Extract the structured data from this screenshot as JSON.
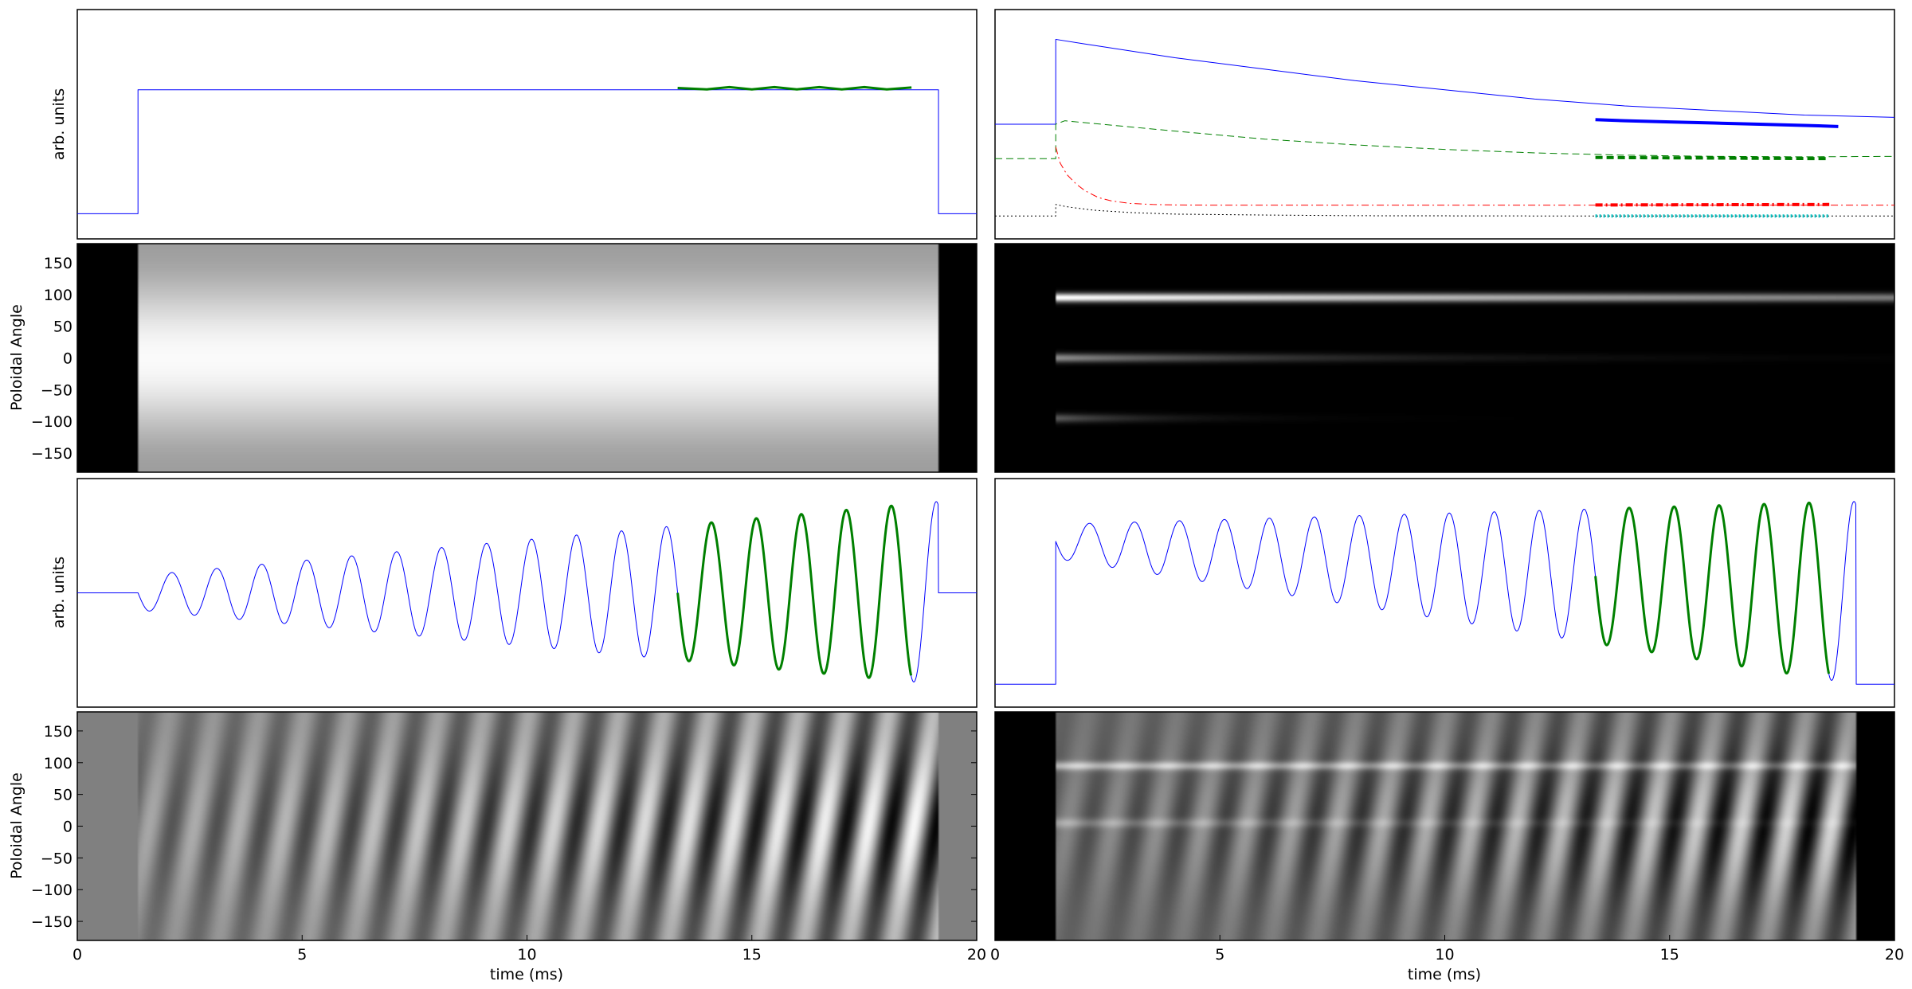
{
  "figure": {
    "colors": {
      "blue": "#0000ff",
      "green": "#008000",
      "red": "#ff0000",
      "black": "#000000",
      "cyan": "#00bfbf",
      "frame": "#000000"
    }
  },
  "chart_data": [
    {
      "id": "left-signal",
      "type": "line",
      "ylabel": "arb. units",
      "xlim": [
        0,
        20
      ],
      "ylim": [
        0,
        1
      ],
      "grid": false,
      "series": [
        {
          "color": "#0000ff",
          "style": "solid",
          "width": 1,
          "x": [
            0,
            1.35,
            1.35,
            19.15,
            19.15,
            20
          ],
          "y": [
            0.11,
            0.11,
            0.65,
            0.65,
            0.11,
            0.11
          ]
        },
        {
          "color": "#008000",
          "style": "solid",
          "width": 3,
          "x": [
            13.35,
            14.0,
            14.5,
            15.0,
            15.5,
            16.0,
            16.5,
            17.0,
            17.5,
            18.0,
            18.55
          ],
          "y": [
            0.658,
            0.652,
            0.662,
            0.652,
            0.662,
            0.652,
            0.662,
            0.652,
            0.662,
            0.652,
            0.66
          ]
        }
      ]
    },
    {
      "id": "right-signal",
      "type": "line",
      "xlim": [
        0,
        20
      ],
      "ylim": [
        0,
        1
      ],
      "grid": false,
      "series": [
        {
          "color": "#0000ff",
          "style": "solid",
          "width": 1,
          "x": [
            0,
            1.35,
            1.35,
            2,
            4,
            6,
            8,
            10,
            12,
            14,
            16,
            18,
            20
          ],
          "y": [
            0.5,
            0.5,
            0.87,
            0.85,
            0.79,
            0.74,
            0.69,
            0.65,
            0.61,
            0.58,
            0.56,
            0.54,
            0.53
          ]
        },
        {
          "color": "#0000ff",
          "style": "solid",
          "width": 4,
          "x": [
            13.35,
            14,
            15,
            16,
            17,
            18,
            18.75
          ],
          "y": [
            0.52,
            0.515,
            0.51,
            0.505,
            0.5,
            0.495,
            0.49
          ]
        },
        {
          "color": "#008000",
          "style": "dashed",
          "width": 1,
          "x": [
            0,
            1.35,
            1.35,
            1.55,
            4,
            6,
            8,
            10,
            12,
            14,
            16,
            18,
            20
          ],
          "y": [
            0.35,
            0.35,
            0.5,
            0.515,
            0.47,
            0.435,
            0.41,
            0.39,
            0.375,
            0.365,
            0.36,
            0.358,
            0.36
          ]
        },
        {
          "color": "#008000",
          "style": "dashed",
          "width": 4,
          "x": [
            13.35,
            18.55
          ],
          "y": [
            0.355,
            0.35
          ]
        },
        {
          "color": "#ff0000",
          "style": "dashdot",
          "width": 1,
          "x": [
            1.35,
            1.45,
            1.6,
            1.8,
            2.0,
            2.3,
            2.6,
            3.0,
            3.5,
            4.0,
            5.0,
            6.0,
            8.0,
            12.0,
            16.0,
            20.0
          ],
          "y": [
            0.4,
            0.33,
            0.28,
            0.24,
            0.21,
            0.18,
            0.165,
            0.155,
            0.15,
            0.148,
            0.147,
            0.147,
            0.147,
            0.147,
            0.147,
            0.147
          ]
        },
        {
          "color": "#ff0000",
          "style": "dashdot",
          "width": 4,
          "x": [
            13.35,
            18.55
          ],
          "y": [
            0.148,
            0.15
          ]
        },
        {
          "color": "#000000",
          "style": "dotted",
          "width": 1,
          "x": [
            0,
            1.35,
            1.35,
            1.6,
            2.2,
            3.0,
            4.0,
            6.0,
            8.0,
            12.0,
            16.0,
            20.0
          ],
          "y": [
            0.1,
            0.1,
            0.15,
            0.14,
            0.125,
            0.115,
            0.108,
            0.104,
            0.101,
            0.1,
            0.1,
            0.1
          ]
        },
        {
          "color": "#00bfbf",
          "style": "dotted",
          "width": 4,
          "x": [
            13.35,
            18.55
          ],
          "y": [
            0.1,
            0.1
          ]
        }
      ]
    },
    {
      "id": "left-map",
      "type": "heatmap",
      "ylabel": "Poloidal Angle",
      "xlim": [
        0,
        20
      ],
      "ylim": [
        -180,
        180
      ],
      "yticks": [
        "150",
        "100",
        "50",
        "0",
        "−50",
        "−100",
        "−150"
      ],
      "ytick_values": [
        150,
        100,
        50,
        0,
        -50,
        -100,
        -150
      ],
      "colormap": "gray",
      "t_on": 1.35,
      "t_off": 19.15,
      "pattern": "smooth vertical gradient, brightest near 0, darker toward ±180, black outside discharge"
    },
    {
      "id": "right-map",
      "type": "heatmap",
      "xlim": [
        0,
        20
      ],
      "ylim": [
        -180,
        180
      ],
      "colormap": "gray",
      "t_on": 1.35,
      "pattern": "three bright horizontal bands near 95, 0 and −95 degrees, decaying with time",
      "bands": [
        {
          "angle": 95,
          "peak": 1.0,
          "decay_ms": 25
        },
        {
          "angle": 0,
          "peak": 0.55,
          "decay_ms": 5
        },
        {
          "angle": -95,
          "peak": 0.35,
          "decay_ms": 2
        }
      ]
    },
    {
      "id": "left-wave",
      "type": "line",
      "ylabel": "arb. units",
      "xlim": [
        0,
        20
      ],
      "ylim": [
        -1,
        1
      ],
      "grid": false,
      "t_on": 1.35,
      "t_off": 19.15,
      "frequency_khz": 1.0,
      "amplitude_range": [
        0.15,
        0.8
      ],
      "series": [
        {
          "color": "#0000ff",
          "style": "solid",
          "width": 1,
          "segment": "full"
        },
        {
          "color": "#008000",
          "style": "solid",
          "width": 3,
          "segment": [
            13.35,
            18.55
          ]
        }
      ]
    },
    {
      "id": "right-wave",
      "type": "line",
      "xlim": [
        0,
        20
      ],
      "ylim": [
        -1,
        1
      ],
      "grid": false,
      "t_on": 1.35,
      "t_off": 19.15,
      "frequency_khz": 1.0,
      "offset_range": [
        0.45,
        0.0
      ],
      "amplitude_range": [
        0.15,
        0.8
      ],
      "baseline": -0.8,
      "series": [
        {
          "color": "#0000ff",
          "style": "solid",
          "width": 1,
          "segment": "full"
        },
        {
          "color": "#008000",
          "style": "solid",
          "width": 3,
          "segment": [
            13.35,
            18.55
          ]
        }
      ]
    },
    {
      "id": "left-wave-map",
      "type": "heatmap",
      "ylabel": "Poloidal Angle",
      "xlabel": "time (ms)",
      "xlim": [
        0,
        20
      ],
      "xticks": [
        "0",
        "5",
        "10",
        "15",
        "20"
      ],
      "xtick_values": [
        0,
        5,
        10,
        15,
        20
      ],
      "ylim": [
        -180,
        180
      ],
      "yticks": [
        "150",
        "100",
        "50",
        "0",
        "−50",
        "−100",
        "−150"
      ],
      "ytick_values": [
        150,
        100,
        50,
        0,
        -50,
        -100,
        -150
      ],
      "colormap": "gray",
      "pattern": "diagonal stripes of a rotating mode, amplitude growing with time"
    },
    {
      "id": "right-wave-map",
      "type": "heatmap",
      "xlabel": "time (ms)",
      "xlim": [
        0,
        20
      ],
      "xticks": [
        "0",
        "5",
        "10",
        "15",
        "20"
      ],
      "xtick_values": [
        0,
        5,
        10,
        15,
        20
      ],
      "ylim": [
        -180,
        180
      ],
      "colormap": "gray",
      "pattern": "diagonal stripes plus faint horizontal bands near 95 and 0 degrees"
    }
  ]
}
